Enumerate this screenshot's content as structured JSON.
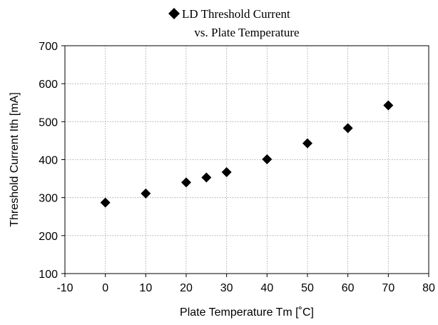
{
  "chart_data": {
    "type": "scatter",
    "title_line1": "LD Threshold Current",
    "title_line2": "vs. Plate Temperature",
    "xlabel": "Plate Temperature Tm [˚C]",
    "ylabel": "Threshold Current  Ith [mA]",
    "xlim": [
      -10,
      80
    ],
    "ylim": [
      100,
      700
    ],
    "xticks": [
      -10,
      0,
      10,
      20,
      30,
      40,
      50,
      60,
      70,
      80
    ],
    "yticks": [
      100,
      200,
      300,
      400,
      500,
      600,
      700
    ],
    "grid": true,
    "legend": "top (inline with title)",
    "marker": "diamond",
    "marker_color": "#000000",
    "series": [
      {
        "x": [
          0,
          10,
          20,
          25,
          30,
          40,
          50,
          60,
          70
        ],
        "y": [
          287,
          311,
          340,
          353,
          367,
          401,
          443,
          483,
          543
        ]
      }
    ]
  }
}
